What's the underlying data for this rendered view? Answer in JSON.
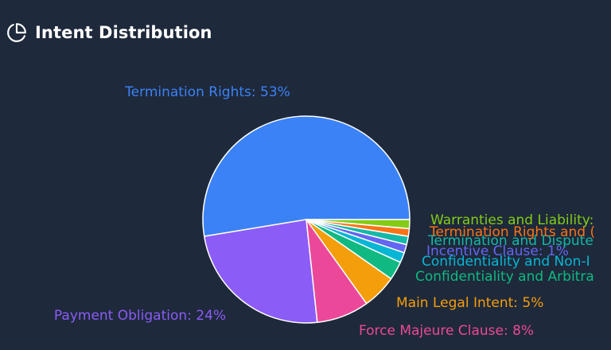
{
  "header": {
    "title": "Intent Distribution",
    "icon": "pie-chart-icon"
  },
  "chart_data": {
    "type": "pie",
    "title": "Intent Distribution",
    "legend": "none",
    "slices": [
      {
        "label": "Termination Rights",
        "label_text": "Termination Rights: 53%",
        "value": 52.6,
        "color": "#3b82f6"
      },
      {
        "label": "Payment Obligation",
        "label_text": "Payment Obligation: 24%",
        "value": 24.1,
        "color": "#8b5cf6"
      },
      {
        "label": "Force Majeure Clause",
        "label_text": "Force Majeure Clause: 8%",
        "value": 8.2,
        "color": "#ec4899"
      },
      {
        "label": "Main Legal Intent",
        "label_text": "Main Legal Intent: 5%",
        "value": 5.4,
        "color": "#f59e0b"
      },
      {
        "label": "Confidentiality and Arbitra",
        "label_text": "Confidentiality and Arbitra",
        "value": 2.9,
        "color": "#10b981"
      },
      {
        "label": "Confidentiality and Non-I",
        "label_text": "Confidentiality and Non-I",
        "value": 1.6,
        "color": "#06b6d4"
      },
      {
        "label": "Incentive Clause",
        "label_text": "Incentive Clause: 1%",
        "value": 1.3,
        "color": "#6366f1"
      },
      {
        "label": "Termination and Dispute",
        "label_text": "Termination and Dispute",
        "value": 1.3,
        "color": "#14b8a6"
      },
      {
        "label": "Termination Rights and",
        "label_text": "Termination Rights and (",
        "value": 1.2,
        "color": "#f97316"
      },
      {
        "label": "Warranties and Liability",
        "label_text": "Warranties and Liability:",
        "value": 1.4,
        "color": "#84cc16"
      }
    ]
  }
}
